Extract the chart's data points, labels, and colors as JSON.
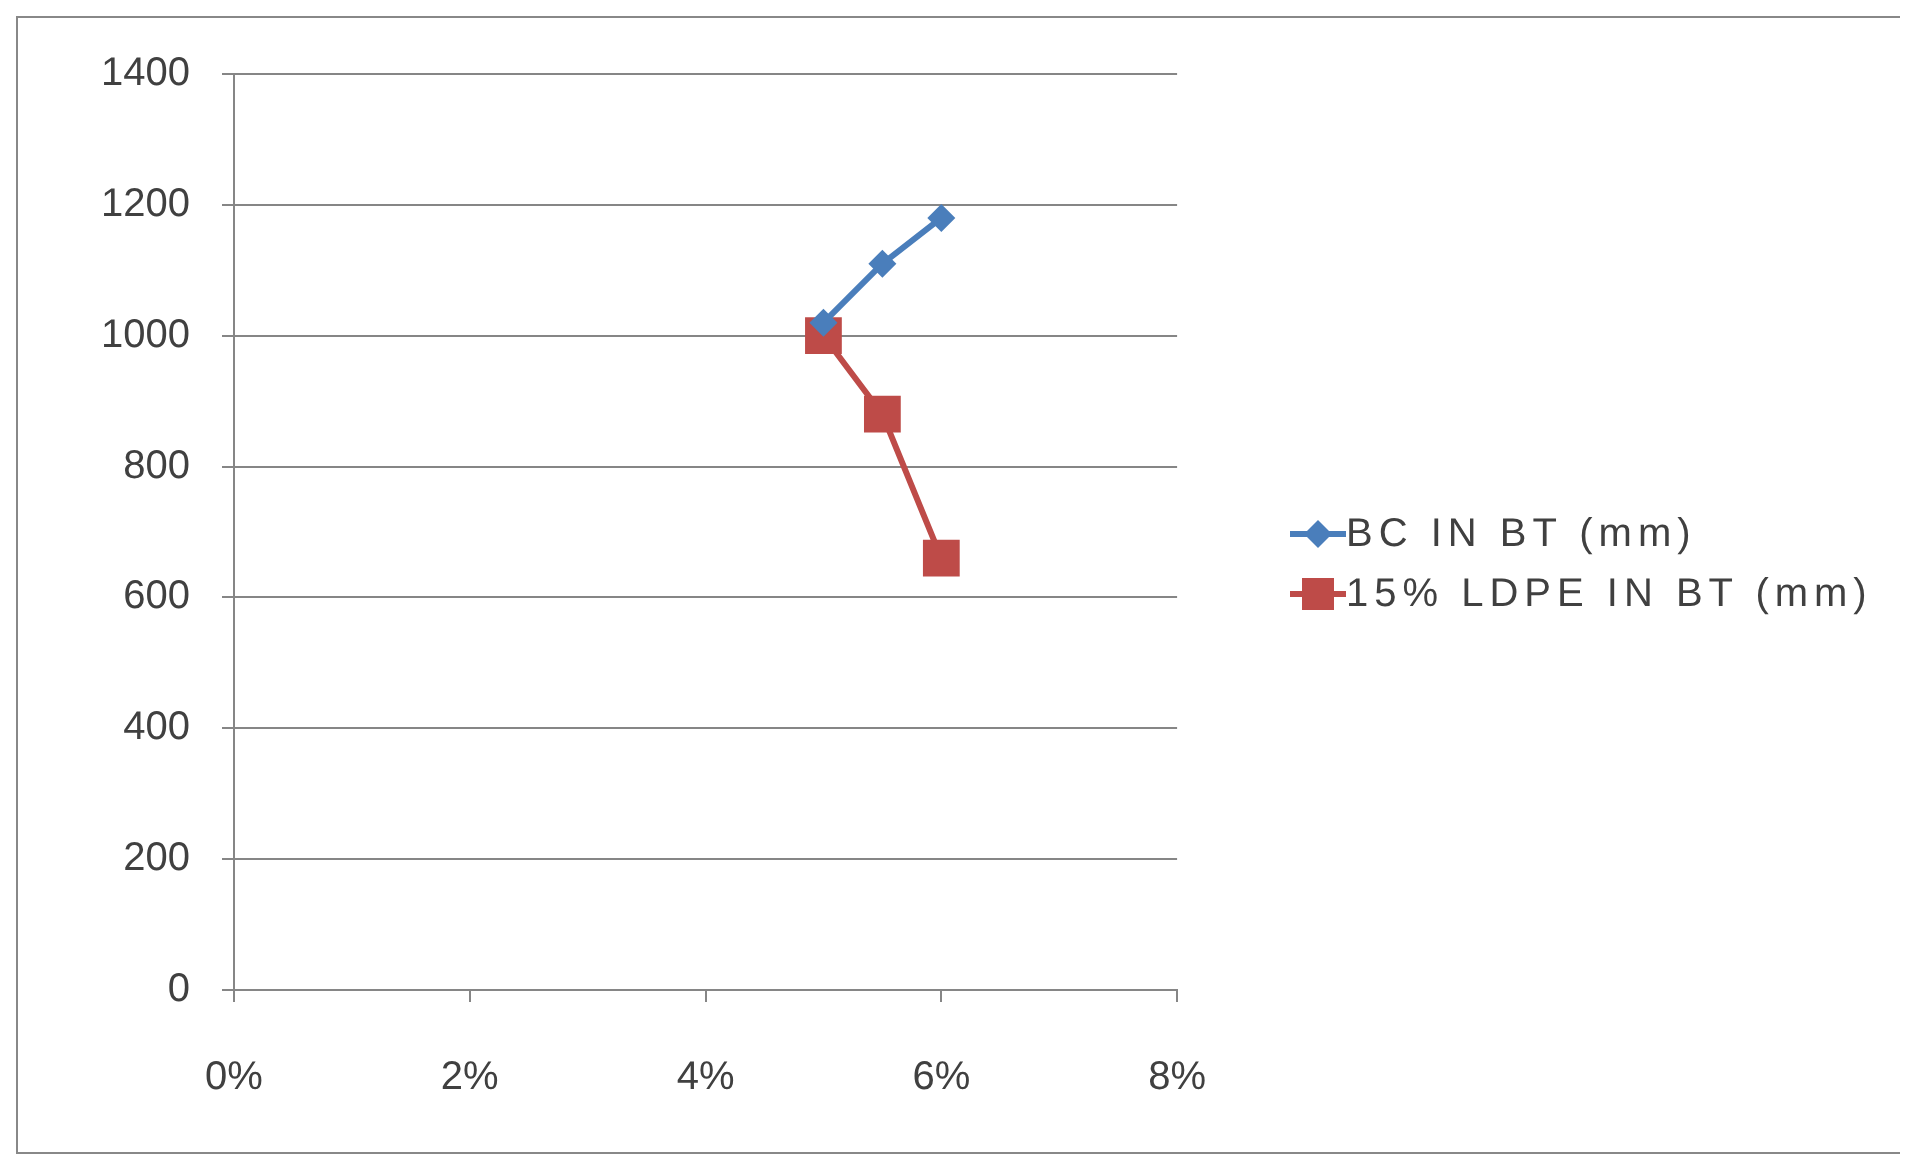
{
  "chart_data": {
    "type": "line",
    "x": [
      5,
      5.5,
      6
    ],
    "series": [
      {
        "name": "BC IN BT (mm)",
        "color": "#4a7ebb",
        "marker": "diamond",
        "values": [
          1020,
          1110,
          1180
        ]
      },
      {
        "name": "15% LDPE IN BT (mm)",
        "color": "#be4b48",
        "marker": "square",
        "values": [
          1000,
          880,
          660
        ]
      }
    ],
    "xlim": [
      0,
      8
    ],
    "xticks": [
      {
        "value": 0,
        "label": "0%"
      },
      {
        "value": 2,
        "label": "2%"
      },
      {
        "value": 4,
        "label": "4%"
      },
      {
        "value": 6,
        "label": "6%"
      },
      {
        "value": 8,
        "label": "8%"
      }
    ],
    "ylim": [
      0,
      1400
    ],
    "yticks": [
      0,
      200,
      400,
      600,
      800,
      1000,
      1200,
      1400
    ],
    "grid": "y",
    "legend": "right"
  }
}
